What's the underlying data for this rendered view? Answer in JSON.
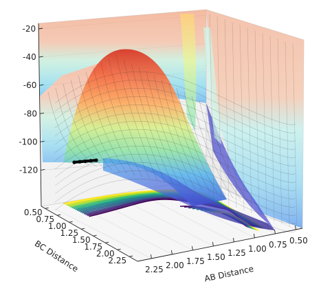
{
  "chart_data": {
    "type": "surface-3d",
    "title": "",
    "xlabel": "AB Distance",
    "ylabel": "BC Distance",
    "zlabel": "",
    "x_ticks": [
      "0.50",
      "0.75",
      "1.00",
      "1.25",
      "1.50",
      "1.75",
      "2.00",
      "2.25"
    ],
    "y_ticks": [
      "0.50",
      "0.75",
      "1.00",
      "1.25",
      "1.50",
      "1.75",
      "2.00",
      "2.25"
    ],
    "z_ticks": [
      "-20",
      "-40",
      "-60",
      "-80",
      "-100",
      "-120"
    ],
    "xlim": [
      0.5,
      2.4
    ],
    "ylim": [
      0.5,
      2.4
    ],
    "zlim": [
      -135,
      -20
    ],
    "grid": true,
    "colormap_surface": "jet",
    "colormap_contour": "viridis",
    "trajectory": {
      "color": "#000000",
      "points_ab": [
        2.3,
        2.25,
        2.2,
        2.15,
        2.1
      ],
      "points_bc": [
        0.74,
        0.74,
        0.74,
        0.74,
        0.74
      ],
      "points_energy": [
        -104,
        -104,
        -104,
        -104,
        -104
      ]
    }
  },
  "colors": {
    "pane": "#f2f2f2",
    "grid": "#d0d0d0",
    "axis": "#222222"
  }
}
